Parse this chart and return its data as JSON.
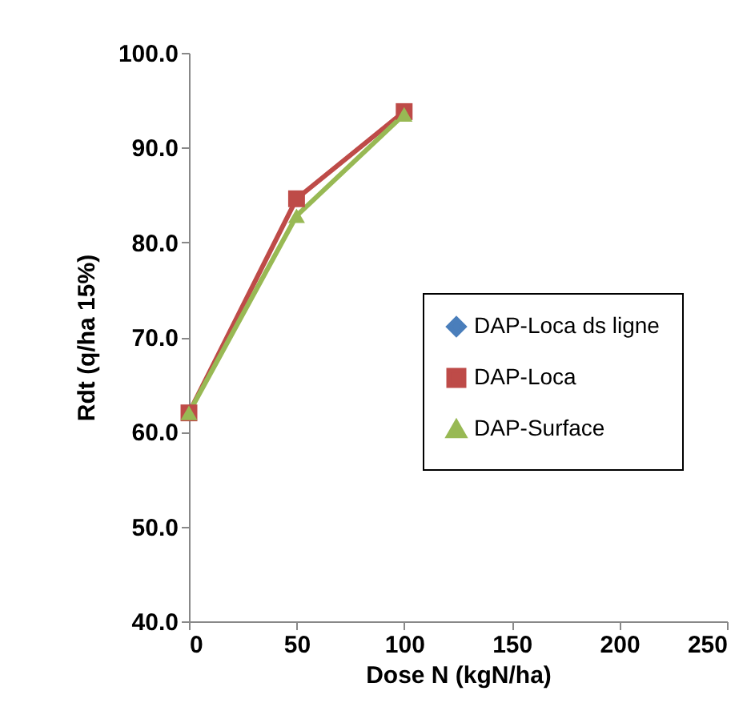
{
  "chart_data": {
    "type": "line",
    "xlabel": "Dose N (kgN/ha)",
    "ylabel": "Rdt (q/ha 15%)",
    "x": [
      0,
      50,
      100
    ],
    "series": [
      {
        "name": "DAP-Loca ds ligne",
        "color": "#4a7ebb",
        "marker": "diamond",
        "values": [
          null,
          null,
          null
        ]
      },
      {
        "name": "DAP-Loca",
        "color": "#be4b48",
        "marker": "square",
        "values": [
          62,
          84.6,
          93.8
        ]
      },
      {
        "name": "DAP-Surface",
        "color": "#98b954",
        "marker": "triangle",
        "values": [
          62,
          82.8,
          93.5
        ]
      }
    ],
    "xlim": [
      0,
      250
    ],
    "xticks": [
      0,
      50,
      100,
      150,
      200,
      250
    ],
    "ylim": [
      40,
      100
    ],
    "yticks": [
      {
        "value": 40,
        "label": "40.0"
      },
      {
        "value": 50,
        "label": "50.0"
      },
      {
        "value": 60,
        "label": "60.0"
      },
      {
        "value": 70,
        "label": "70.0"
      },
      {
        "value": 80,
        "label": "80.0"
      },
      {
        "value": 90,
        "label": "90.0"
      },
      {
        "value": 100,
        "label": "100.0"
      }
    ],
    "grid": false,
    "legend": "right"
  }
}
